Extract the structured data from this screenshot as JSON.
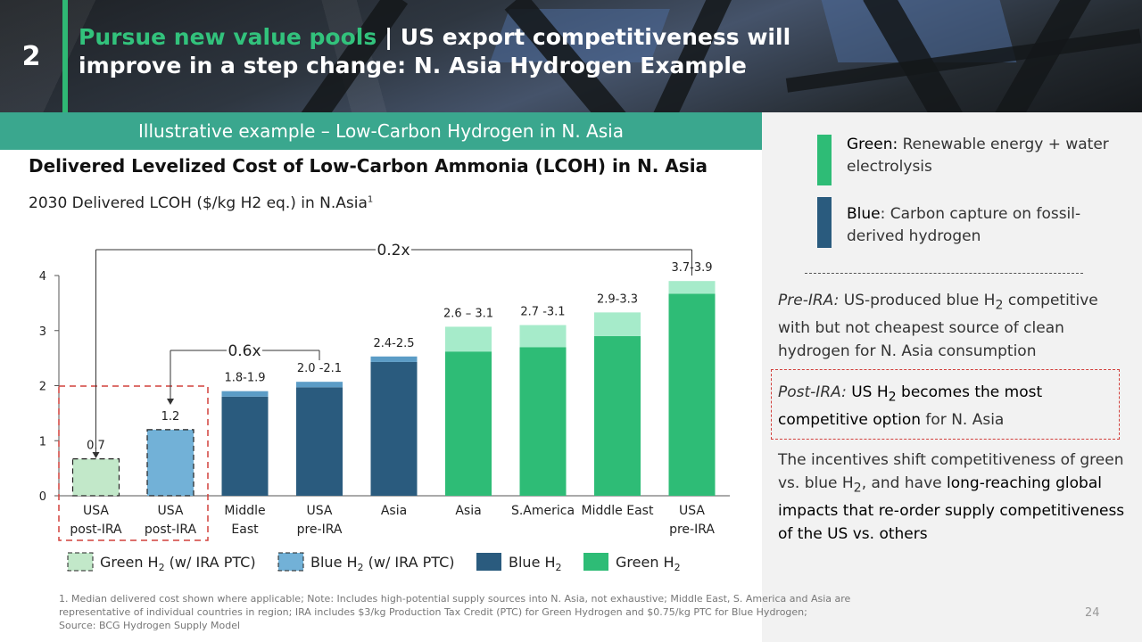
{
  "header": {
    "section_number": "2",
    "title_highlight": "Pursue new value pools",
    "title_separator": " | ",
    "title_rest": "US export competitiveness will improve in a step change: N. Asia Hydrogen Example"
  },
  "band_label": "Illustrative example – Low-Carbon Hydrogen in N. Asia",
  "chart_heading": "Delivered Levelized Cost of Low-Carbon Ammonia (LCOH) in N. Asia",
  "chart_subheading": "2030 Delivered LCOH ($/kg H2 eq.) in N.Asia",
  "chart_subheading_sup": "1",
  "colors": {
    "green_light": "#c2e8c9",
    "blue_light": "#72b1d7",
    "blue_dark": "#2a5b7e",
    "blue_top": "#5b9cc6",
    "green": "#2ebc76",
    "green_top": "#a6ebca",
    "red_dash": "#d2403c",
    "accent": "#3aa78e"
  },
  "chart_data": {
    "type": "bar",
    "ylim": [
      0,
      4
    ],
    "yticks": [
      0,
      1,
      2,
      3,
      4
    ],
    "bars": [
      {
        "label": [
          "USA",
          "post-IRA"
        ],
        "low": 0.67,
        "high": 0.67,
        "value_label": "0.7",
        "style": "green_light_dashed"
      },
      {
        "label": [
          "USA",
          "post-IRA"
        ],
        "low": 1.2,
        "high": 1.2,
        "value_label": "1.2",
        "style": "blue_light_dashed"
      },
      {
        "label": [
          "Middle",
          "East"
        ],
        "low": 1.8,
        "high": 1.9,
        "value_label": "1.8-1.9",
        "style": "blue"
      },
      {
        "label": [
          "USA",
          "pre-IRA"
        ],
        "low": 1.97,
        "high": 2.07,
        "value_label": "2.0 -2.1",
        "style": "blue"
      },
      {
        "label": [
          "Asia"
        ],
        "low": 2.43,
        "high": 2.53,
        "value_label": "2.4-2.5",
        "style": "blue"
      },
      {
        "label": [
          "Asia"
        ],
        "low": 2.62,
        "high": 3.07,
        "value_label": "2.6 – 3.1",
        "style": "green"
      },
      {
        "label": [
          "S.America"
        ],
        "low": 2.7,
        "high": 3.1,
        "value_label": "2.7 -3.1",
        "style": "green"
      },
      {
        "label": [
          "Middle East"
        ],
        "low": 2.9,
        "high": 3.33,
        "value_label": "2.9-3.3",
        "style": "green"
      },
      {
        "label": [
          "USA",
          "pre-IRA"
        ],
        "low": 3.67,
        "high": 3.9,
        "value_label": "3.7-3.9",
        "style": "green"
      }
    ],
    "annotations": [
      {
        "text": "0.2x",
        "from_bar": 0,
        "to_bar": 8
      },
      {
        "text": "0.6x",
        "from_bar": 1,
        "to_bar": 3
      }
    ],
    "legend": [
      {
        "text": "Green H",
        "sub": "2",
        "tail": " (w/ IRA PTC)",
        "style": "green_light_dashed"
      },
      {
        "text": "Blue H",
        "sub": "2",
        "tail": " (w/ IRA PTC)",
        "style": "blue_light_dashed"
      },
      {
        "text": "Blue H",
        "sub": "2",
        "tail": "",
        "style": "blue"
      },
      {
        "text": "Green H",
        "sub": "2",
        "tail": "",
        "style": "green"
      }
    ]
  },
  "right_panel": {
    "green_label": "Green:",
    "green_text": " Renewable energy + water electrolysis",
    "blue_label": "Blue",
    "blue_text": ": Carbon capture on fossil-derived hydrogen",
    "pre_ira_label": "Pre-IRA:",
    "pre_ira_text_1": " US-produced blue H",
    "pre_ira_sub": "2",
    "pre_ira_text_2": " competitive with but not cheapest source of clean hydrogen for N. Asia consumption",
    "post_ira_label": "Post-IRA:",
    "post_ira_strong_1": " US H",
    "post_ira_sub": "2",
    "post_ira_strong_2": " becomes the most competitive option",
    "post_ira_text": " for N. Asia",
    "incentives_text_1": "The incentives shift competitiveness of green vs. blue H",
    "incentives_sub": "2",
    "incentives_text_2": ", and have ",
    "incentives_strong": "long-reaching global impacts that re-order supply competitiveness of the US vs. others"
  },
  "footnote": "1. Median delivered cost shown where applicable; Note: Includes high-potential supply sources into N. Asia, not exhaustive; Middle East, S. America and Asia are representative of individual countries in region; IRA includes $3/kg Production Tax Credit (PTC) for Green Hydrogen and $0.75/kg PTC for Blue Hydrogen;",
  "source": "Source: BCG Hydrogen Supply Model",
  "page_number": "24"
}
